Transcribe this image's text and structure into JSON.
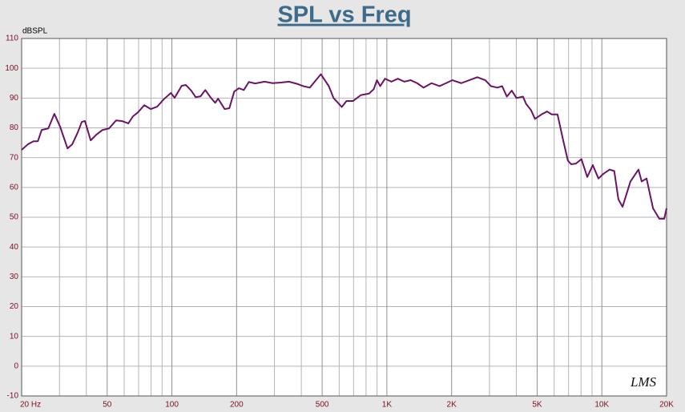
{
  "chart_data": {
    "type": "line",
    "title": "SPL vs Freq",
    "y_label": "dBSPL",
    "annotation": "LMS",
    "x_scale": "log",
    "grid": true,
    "color": "#6b1466",
    "xlim": [
      20,
      20000
    ],
    "ylim": [
      -10,
      110
    ],
    "yticks": [
      -10,
      0,
      10,
      20,
      30,
      40,
      50,
      60,
      70,
      80,
      90,
      100,
      110
    ],
    "xticks": [
      {
        "value": 20,
        "label": "20 Hz"
      },
      50,
      100,
      200,
      500,
      {
        "value": 1000,
        "label": "1K"
      },
      {
        "value": 2000,
        "label": "2K"
      },
      {
        "value": 5000,
        "label": "5K"
      },
      {
        "value": 10000,
        "label": "10K"
      },
      {
        "value": 20000,
        "label": "20K"
      }
    ],
    "xminorticks": [
      30,
      40,
      60,
      70,
      80,
      90,
      300,
      400,
      600,
      700,
      800,
      900,
      3000,
      4000,
      6000,
      7000,
      8000,
      9000
    ],
    "x": [
      20,
      21.4,
      22.7,
      23.8,
      24.8,
      26.6,
      28.4,
      30.2,
      32.7,
      34.4,
      36.5,
      38.1,
      39.4,
      41.9,
      44.5,
      47.6,
      51,
      55,
      58.5,
      62.7,
      66,
      69.5,
      74.4,
      79.8,
      85.4,
      91.4,
      98.9,
      103,
      111,
      116,
      123,
      129,
      136,
      143,
      151,
      159,
      164,
      176,
      185,
      195,
      205,
      216,
      228,
      244,
      270,
      294,
      321,
      350,
      381,
      408,
      438,
      468,
      493,
      537,
      565,
      617,
      649,
      695,
      757,
      826,
      869,
      899,
      931,
      980,
      1050,
      1125,
      1205,
      1290,
      1383,
      1480,
      1614,
      1758,
      1884,
      2018,
      2218,
      2416,
      2632,
      2870,
      3048,
      3266,
      3436,
      3614,
      3810,
      4008,
      4296,
      4446,
      4678,
      4886,
      5236,
      5560,
      5848,
      6220,
      6600,
      6950,
      7194,
      7568,
      8036,
      8552,
      9078,
      9640,
      10140,
      10860,
      11420,
      11940,
      12480,
      13580,
      14800,
      15320,
      16140,
      17300,
      18500,
      19500,
      20000
    ],
    "values": [
      72.6,
      74.5,
      75.5,
      75.5,
      79.3,
      79.8,
      84.7,
      80.4,
      73.1,
      74.5,
      78.5,
      82,
      82.3,
      75.8,
      77.7,
      79.3,
      79.8,
      82.5,
      82.3,
      81.5,
      83.9,
      85.2,
      87.6,
      86.3,
      87.1,
      89.5,
      91.7,
      90.1,
      94.1,
      94.4,
      92.5,
      90.3,
      90.6,
      92.7,
      90.3,
      88.4,
      89.8,
      86.3,
      86.6,
      92.2,
      93.3,
      92.7,
      95.4,
      94.9,
      95.5,
      95,
      95.2,
      95.5,
      94.8,
      94,
      93.5,
      96,
      98,
      94,
      90,
      87,
      89,
      89,
      91,
      91.5,
      93,
      96,
      94,
      96.5,
      95.5,
      96.5,
      95.5,
      96,
      95,
      93.5,
      95,
      94,
      95,
      96,
      95,
      96,
      97,
      96,
      94,
      93.5,
      94,
      90.5,
      92.5,
      90,
      90.5,
      88,
      86,
      83,
      84.5,
      85.5,
      84.5,
      84.5,
      76,
      69,
      67.8,
      68,
      69.5,
      63.5,
      67.5,
      63,
      64.5,
      66,
      65.5,
      56,
      53.5,
      62,
      66,
      62,
      63,
      53,
      49.5,
      49.5,
      53
    ]
  }
}
